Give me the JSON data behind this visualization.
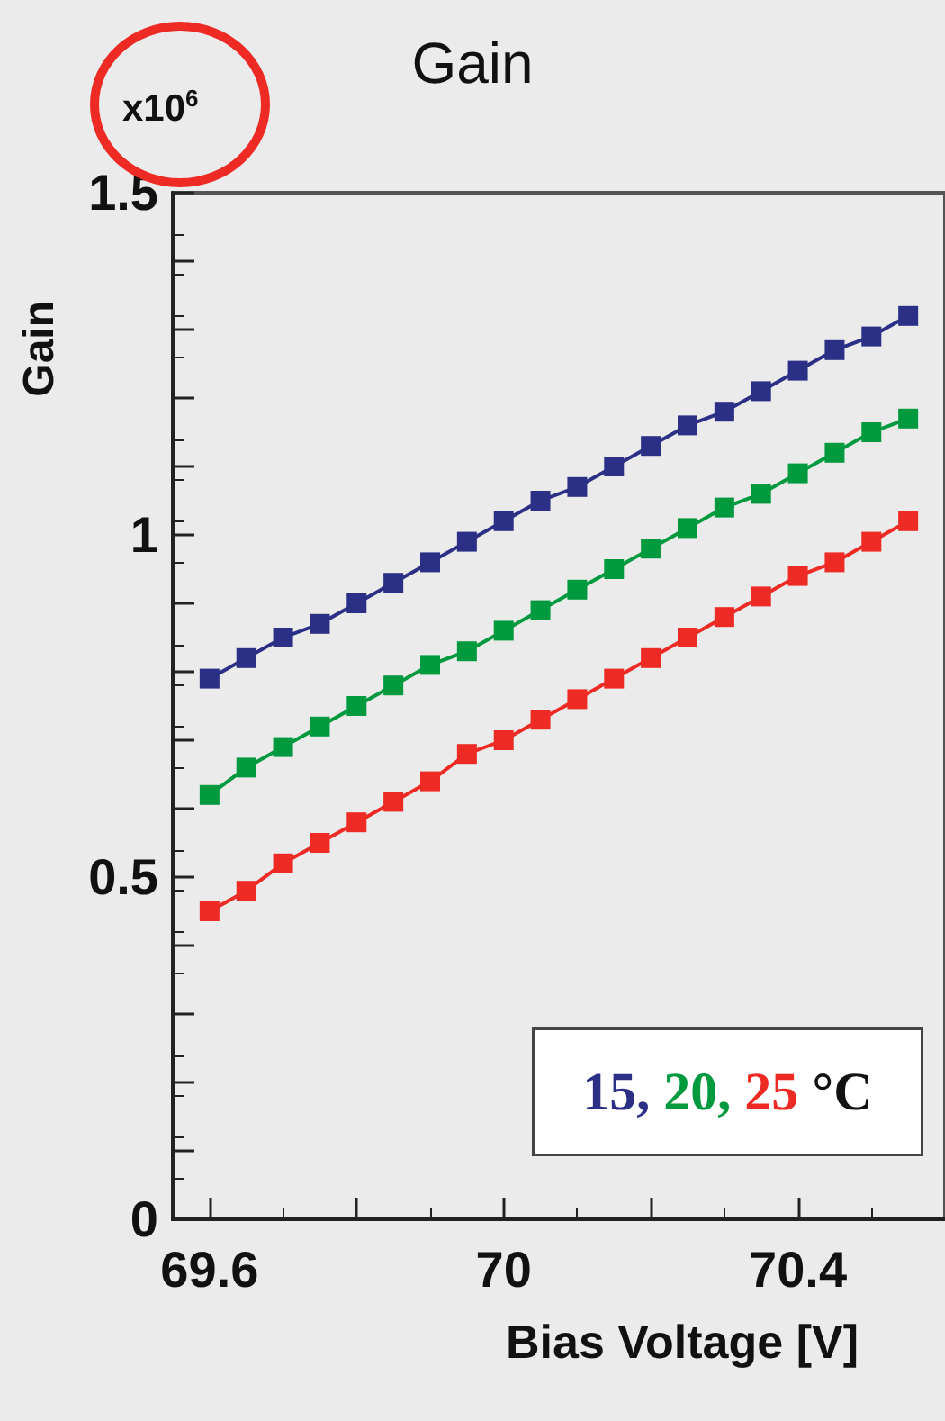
{
  "chart_data": {
    "type": "line",
    "title": "Gain",
    "xlabel": "Bias Voltage [V]",
    "ylabel": "Gain",
    "legend_title": "°C",
    "annotations": [
      "x10$^{6}$"
    ],
    "x": [
      69.6,
      69.65,
      69.7,
      69.75,
      69.8,
      69.85,
      69.9,
      69.95,
      70.0,
      70.05,
      70.1,
      70.15,
      70.2,
      70.25,
      70.3,
      70.35,
      70.4,
      70.45,
      70.5,
      70.55
    ],
    "series": [
      {
        "name": "15,",
        "color": "#2b2f86",
        "values": [
          0.79,
          0.82,
          0.85,
          0.87,
          0.9,
          0.93,
          0.96,
          0.99,
          1.02,
          1.05,
          1.07,
          1.1,
          1.13,
          1.16,
          1.18,
          1.21,
          1.24,
          1.27,
          1.29,
          1.32
        ]
      },
      {
        "name": "20,",
        "color": "#009a3e",
        "values": [
          0.62,
          0.66,
          0.69,
          0.72,
          0.75,
          0.78,
          0.81,
          0.83,
          0.86,
          0.89,
          0.92,
          0.95,
          0.98,
          1.01,
          1.04,
          1.06,
          1.09,
          1.12,
          1.15,
          1.17
        ]
      },
      {
        "name": "25",
        "color": "#ee2a24",
        "values": [
          0.45,
          0.48,
          0.52,
          0.55,
          0.58,
          0.61,
          0.64,
          0.68,
          0.7,
          0.73,
          0.76,
          0.79,
          0.82,
          0.85,
          0.88,
          0.91,
          0.94,
          0.96,
          0.99,
          1.02
        ]
      }
    ],
    "xlim": [
      69.55,
      70.6
    ],
    "xticks": [
      69.6,
      {
        "value": 69.8,
        "label": null
      },
      70,
      {
        "value": 70.2,
        "label": null
      },
      70.4
    ],
    "ylim": [
      0,
      1.5
    ],
    "yticks": [
      0,
      {
        "value": 0.1,
        "label": null
      },
      {
        "value": 0.2,
        "label": null
      },
      {
        "value": 0.3,
        "label": null
      },
      {
        "value": 0.4,
        "label": null
      },
      0.5,
      {
        "value": 0.6,
        "label": null
      },
      {
        "value": 0.7,
        "label": null
      },
      {
        "value": 0.8,
        "label": null
      },
      {
        "value": 0.9,
        "label": null
      },
      1,
      {
        "value": 1.1,
        "label": null
      },
      {
        "value": 1.2,
        "label": null
      },
      {
        "value": 1.3,
        "label": null
      },
      {
        "value": 1.4,
        "label": null
      },
      1.5
    ],
    "grid": false,
    "legend": "bottom right",
    "marker": "square",
    "line_style": "solid"
  }
}
